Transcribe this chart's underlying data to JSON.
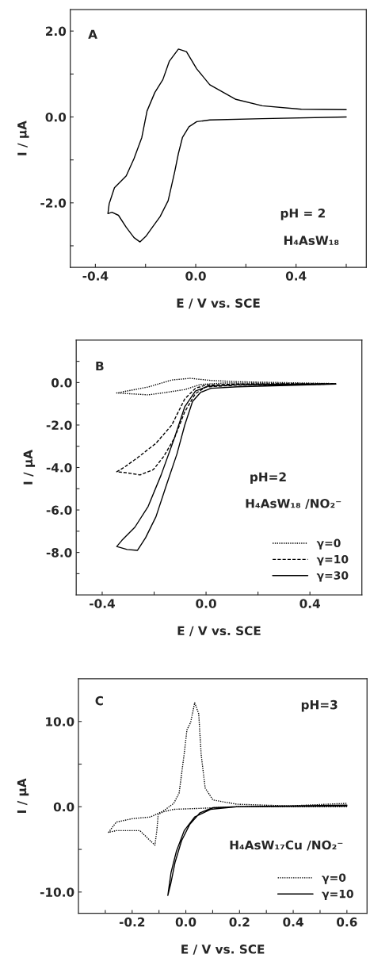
{
  "chart_data": [
    {
      "type": "line",
      "xlabel": "E / V vs. SCE",
      "ylabel": "I / μA",
      "annotations": [
        "A",
        "pH = 2",
        "H₄AsW₁₈"
      ],
      "xlim": [
        -0.5,
        0.68
      ],
      "ylim": [
        -3.5,
        2.5
      ],
      "xticks": [
        {
          "value": -0.4,
          "label": "-0.4"
        },
        {
          "value": -0.2,
          "label": null
        },
        {
          "value": 0.0,
          "label": "0.0"
        },
        {
          "value": 0.2,
          "label": null
        },
        {
          "value": 0.4,
          "label": "0.4"
        },
        {
          "value": 0.6,
          "label": null
        }
      ],
      "yticks": [
        {
          "value": -3.0,
          "label": null
        },
        {
          "value": -2.0,
          "label": "-2.0"
        },
        {
          "value": -1.0,
          "label": null
        },
        {
          "value": 0.0,
          "label": "0.0"
        },
        {
          "value": 1.0,
          "label": null
        },
        {
          "value": 2.0,
          "label": "2.0"
        }
      ],
      "grid": false,
      "legend": false,
      "series": [
        {
          "color": "#000000",
          "line_style": "solid",
          "x": [
            0.6,
            0.265,
            0.056,
            0.004,
            -0.027,
            -0.053,
            -0.069,
            -0.084,
            -0.11,
            -0.142,
            -0.173,
            -0.199,
            -0.222,
            -0.246,
            -0.277,
            -0.308,
            -0.334,
            -0.35,
            -0.345,
            -0.324,
            -0.277,
            -0.246,
            -0.215,
            -0.194,
            -0.163,
            -0.131,
            -0.105,
            -0.069,
            -0.037,
            0.004,
            0.056,
            0.16,
            0.265,
            0.421,
            0.6
          ],
          "values": [
            0.0,
            -0.04,
            -0.07,
            -0.11,
            -0.23,
            -0.48,
            -0.85,
            -1.28,
            -1.95,
            -2.32,
            -2.57,
            -2.78,
            -2.91,
            -2.81,
            -2.57,
            -2.29,
            -2.22,
            -2.25,
            -2.02,
            -1.65,
            -1.37,
            -0.97,
            -0.48,
            0.14,
            0.57,
            0.87,
            1.3,
            1.58,
            1.52,
            1.12,
            0.75,
            0.41,
            0.26,
            0.18,
            0.17
          ]
        }
      ]
    },
    {
      "type": "line",
      "xlabel": "E / V vs. SCE",
      "ylabel": "I / μA",
      "annotations": [
        "B",
        "pH=2",
        "H₄AsW₁₈ /NO₂⁻"
      ],
      "xlim": [
        -0.5,
        0.6
      ],
      "ylim": [
        -10.0,
        2.0
      ],
      "xticks": [
        {
          "value": -0.4,
          "label": "-0.4"
        },
        {
          "value": -0.2,
          "label": null
        },
        {
          "value": 0.0,
          "label": "0.0"
        },
        {
          "value": 0.2,
          "label": null
        },
        {
          "value": 0.4,
          "label": "0.4"
        }
      ],
      "yticks": [
        {
          "value": -9.0,
          "label": null
        },
        {
          "value": -8.0,
          "label": "-8.0"
        },
        {
          "value": -7.0,
          "label": null
        },
        {
          "value": -6.0,
          "label": "-6.0"
        },
        {
          "value": -5.0,
          "label": null
        },
        {
          "value": -4.0,
          "label": "-4.0"
        },
        {
          "value": -3.0,
          "label": null
        },
        {
          "value": -2.0,
          "label": "-2.0"
        },
        {
          "value": -1.0,
          "label": null
        },
        {
          "value": 0.0,
          "label": "0.0"
        },
        {
          "value": 1.0,
          "label": null
        }
      ],
      "grid": false,
      "legend": "bottom right",
      "series": [
        {
          "name": "γ=0",
          "color": "#000000",
          "line_style": "dotted",
          "x": [
            0.5,
            0.07,
            -0.021,
            -0.082,
            -0.163,
            -0.223,
            -0.344,
            -0.223,
            -0.132,
            -0.062,
            0.019,
            0.12,
            0.5
          ],
          "values": [
            -0.06,
            -0.02,
            -0.09,
            -0.33,
            -0.48,
            -0.58,
            -0.49,
            -0.21,
            0.12,
            0.2,
            0.1,
            0.04,
            -0.05
          ]
        },
        {
          "name": "γ=10",
          "color": "#000000",
          "line_style": "dashed",
          "x": [
            0.5,
            0.12,
            -0.001,
            -0.041,
            -0.082,
            -0.122,
            -0.163,
            -0.203,
            -0.254,
            -0.304,
            -0.344,
            -0.314,
            -0.264,
            -0.193,
            -0.132,
            -0.082,
            -0.041,
            -0.001,
            0.12,
            0.5
          ],
          "values": [
            -0.07,
            -0.12,
            -0.21,
            -0.52,
            -1.38,
            -2.62,
            -3.48,
            -4.1,
            -4.35,
            -4.25,
            -4.2,
            -3.98,
            -3.54,
            -2.86,
            -2.0,
            -0.77,
            -0.27,
            -0.12,
            -0.07,
            -0.05
          ]
        },
        {
          "name": "γ=30",
          "color": "#000000",
          "line_style": "solid",
          "x": [
            0.5,
            0.12,
            0.019,
            -0.021,
            -0.052,
            -0.082,
            -0.112,
            -0.153,
            -0.193,
            -0.233,
            -0.264,
            -0.304,
            -0.344,
            -0.324,
            -0.274,
            -0.223,
            -0.173,
            -0.122,
            -0.082,
            -0.041,
            0.009,
            0.12,
            0.5
          ],
          "values": [
            -0.07,
            -0.2,
            -0.27,
            -0.46,
            -0.89,
            -2.0,
            -3.36,
            -4.84,
            -6.32,
            -7.31,
            -7.9,
            -7.86,
            -7.72,
            -7.43,
            -6.81,
            -5.83,
            -4.35,
            -2.62,
            -1.14,
            -0.4,
            -0.17,
            -0.1,
            -0.06
          ]
        }
      ]
    },
    {
      "type": "line",
      "xlabel": "E / V vs. SCE",
      "ylabel": "I / μA",
      "annotations": [
        "C",
        "pH=3",
        "H₄AsW₁₇Cu /NO₂⁻"
      ],
      "xlim": [
        -0.4,
        0.675
      ],
      "ylim": [
        -12.5,
        15.0
      ],
      "xticks": [
        {
          "value": -0.3,
          "label": null
        },
        {
          "value": -0.2,
          "label": "-0.2"
        },
        {
          "value": -0.1,
          "label": null
        },
        {
          "value": 0.0,
          "label": "0.0"
        },
        {
          "value": 0.1,
          "label": null
        },
        {
          "value": 0.2,
          "label": "0.2"
        },
        {
          "value": 0.3,
          "label": null
        },
        {
          "value": 0.4,
          "label": "0.4"
        },
        {
          "value": 0.5,
          "label": null
        },
        {
          "value": 0.6,
          "label": "0.6"
        }
      ],
      "yticks": [
        {
          "value": -10.0,
          "label": "-10.0"
        },
        {
          "value": -5.0,
          "label": null
        },
        {
          "value": 0.0,
          "label": "0.0"
        },
        {
          "value": 5.0,
          "label": null
        },
        {
          "value": 10.0,
          "label": "10.0"
        }
      ],
      "grid": false,
      "legend": "bottom right",
      "series": [
        {
          "name": "γ=0",
          "color": "#000000",
          "line_style": "dotted",
          "x": [
            0.6,
            0.189,
            0.043,
            -0.045,
            -0.084,
            -0.103,
            -0.108,
            -0.115,
            -0.132,
            -0.171,
            -0.22,
            -0.259,
            -0.288,
            -0.259,
            -0.2,
            -0.132,
            -0.084,
            -0.045,
            -0.025,
            -0.006,
            0.004,
            0.018,
            0.033,
            0.048,
            0.057,
            0.072,
            0.101,
            0.189,
            0.384,
            0.6
          ],
          "values": [
            0.0,
            0.0,
            -0.2,
            -0.3,
            -0.6,
            -0.9,
            -2.8,
            -4.5,
            -4.0,
            -2.8,
            -2.8,
            -2.8,
            -3.0,
            -1.8,
            -1.4,
            -1.2,
            -0.5,
            0.4,
            1.6,
            6.2,
            9.0,
            9.9,
            12.2,
            10.9,
            6.2,
            2.2,
            0.8,
            0.3,
            0.1,
            0.4
          ]
        },
        {
          "name": "γ=10",
          "color": "#000000",
          "line_style": "solid",
          "x": [
            0.6,
            0.189,
            0.092,
            0.033,
            -0.006,
            -0.035,
            -0.055,
            -0.067,
            -0.056,
            -0.04,
            -0.016,
            0.014,
            0.053,
            0.101,
            0.189,
            0.6
          ],
          "values": [
            0.1,
            0.0,
            -0.3,
            -1.2,
            -2.8,
            -5.2,
            -7.7,
            -10.4,
            -9.0,
            -6.5,
            -4.0,
            -2.1,
            -0.7,
            -0.1,
            0.0,
            0.2
          ]
        }
      ]
    }
  ]
}
